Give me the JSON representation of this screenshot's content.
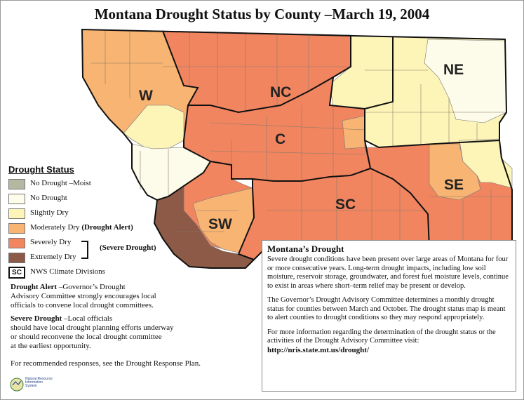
{
  "title": "Montana Drought Status by County –March 19, 2004",
  "regions": {
    "W": "W",
    "NC": "NC",
    "NE": "NE",
    "C": "C",
    "SW": "SW",
    "SC": "SC",
    "SE": "SE"
  },
  "colors": {
    "no_drought_moist": "#b5b7a0",
    "no_drought": "#fdfbea",
    "slightly_dry": "#fdf4b8",
    "moderately_dry": "#f8b472",
    "severely_dry": "#f08560",
    "extremely_dry": "#8c5a46"
  },
  "legend": {
    "title": "Drought Status",
    "items": [
      {
        "label": "No Drought –Moist",
        "extra": ""
      },
      {
        "label": "No Drought",
        "extra": ""
      },
      {
        "label": "Slightly Dry",
        "extra": ""
      },
      {
        "label": "Moderately Dry",
        "extra": "(Drought Alert)"
      },
      {
        "label": "Severely Dry",
        "extra": ""
      },
      {
        "label": "Extremely Dry",
        "extra": ""
      }
    ],
    "severe_label": "(Severe Drought)",
    "sc_box": "SC",
    "climate_divisions": "NWS Climate Divisions"
  },
  "notes": {
    "alert_title": "Drought Alert",
    "alert_text_1": " –Governor’s Drought",
    "alert_text_2": "Advisory Committee strongly encourages local",
    "alert_text_3": "officials to convene local drought committees.",
    "severe_title": "Severe Drought",
    "severe_text_1": " –Local officials",
    "severe_text_2": "should have local drought planning efforts underway",
    "severe_text_3": "or should reconvene the local drought committee",
    "severe_text_4": "at the earliest opportunity.",
    "recommend": "For recommended responses, see the Drought Response Plan."
  },
  "info": {
    "title": "Montana’s Drought",
    "p1": "Severe drought conditions have been present over large areas of Montana for four or more consecutive years. Long-term drought impacts, including low soil moisture, reservoir storage, groundwater, and forest fuel moisture levels, continue to exist in areas where short–term relief may be present or develop.",
    "p2": "The Governor’s Drought Advisory Committee determines a monthly drought status for counties between March and October. The drought status map is meant to alert counties to drought conditions so they may respond appropriately.",
    "p3": "For more information regarding the determination of the drought status or the activities of the Drought Advisory Committee visit:",
    "link": "http://nris.state.mt.us/drought/"
  },
  "logo": {
    "line1": "Natural Resource",
    "line2": "Information",
    "line3": "System"
  }
}
